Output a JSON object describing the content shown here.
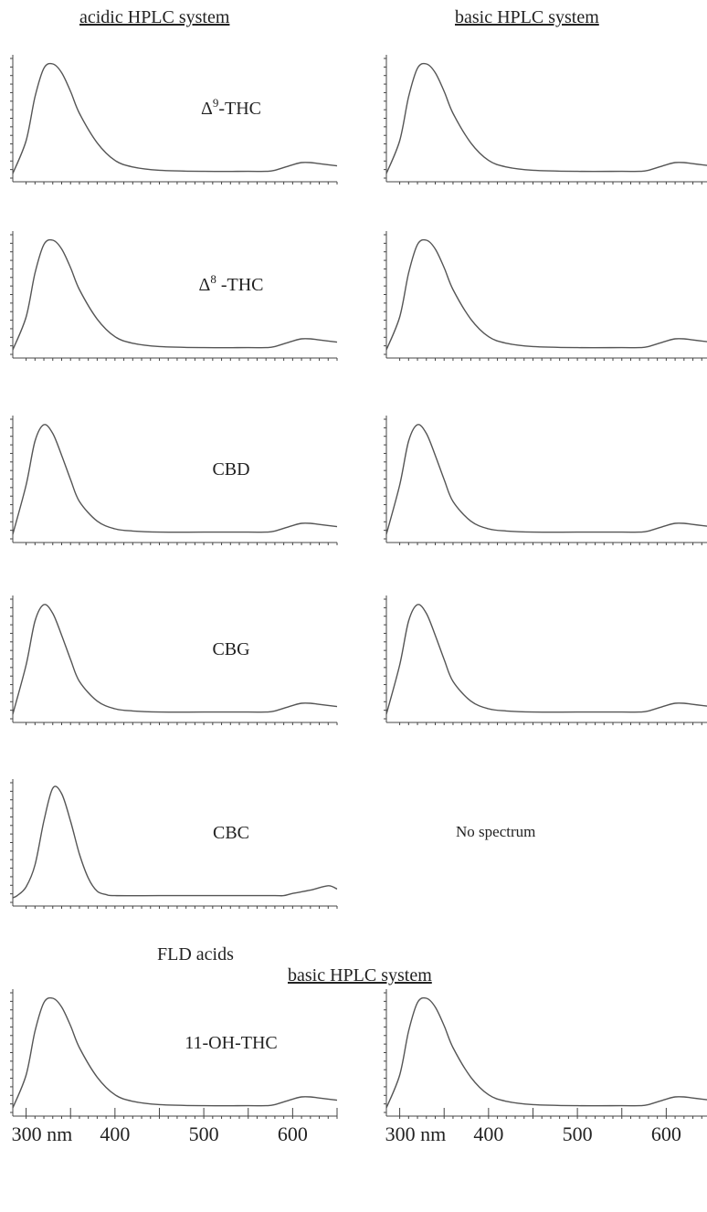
{
  "headers": {
    "acidic": "acidic HPLC system",
    "basic_top": "basic HPLC system",
    "fld_acids": "FLD acids",
    "basic_bottom": "basic HPLC system"
  },
  "no_spectrum": "No spectrum",
  "chart_data": {
    "type": "line",
    "x_unit": "nm",
    "xlim": [
      285,
      650
    ],
    "x_ticks": [
      {
        "value": 300,
        "label": "300 nm"
      },
      {
        "value": 400,
        "label": "400"
      },
      {
        "value": 500,
        "label": "500"
      },
      {
        "value": 600,
        "label": "600"
      }
    ],
    "panels": [
      {
        "row": 0,
        "col": 0,
        "compound_sup": "9",
        "compound": "-THC",
        "compound_prefix": "Δ",
        "x": [
          285,
          300,
          310,
          320,
          330,
          340,
          350,
          360,
          380,
          400,
          420,
          450,
          500,
          550,
          570,
          580,
          600,
          610,
          620,
          630,
          650
        ],
        "y": [
          0,
          30,
          70,
          96,
          100,
          92,
          75,
          55,
          28,
          12,
          6,
          3,
          2,
          2,
          2,
          3,
          8,
          10,
          10,
          9,
          7
        ]
      },
      {
        "row": 0,
        "col": 1,
        "x": [
          285,
          300,
          310,
          320,
          330,
          340,
          350,
          360,
          380,
          400,
          420,
          450,
          500,
          550,
          570,
          580,
          600,
          610,
          620,
          630,
          650
        ],
        "y": [
          0,
          30,
          70,
          96,
          100,
          92,
          75,
          55,
          28,
          12,
          6,
          3,
          2,
          2,
          2,
          3,
          8,
          10,
          10,
          9,
          7
        ]
      },
      {
        "row": 1,
        "col": 0,
        "compound_sup": "8",
        "compound": " -THC",
        "compound_prefix": "Δ",
        "x": [
          285,
          300,
          310,
          320,
          330,
          340,
          350,
          360,
          380,
          400,
          420,
          450,
          500,
          550,
          570,
          580,
          600,
          610,
          620,
          630,
          650
        ],
        "y": [
          0,
          30,
          70,
          96,
          100,
          92,
          75,
          55,
          28,
          12,
          6,
          3,
          2,
          2,
          2,
          3,
          8,
          10,
          10,
          9,
          7
        ]
      },
      {
        "row": 1,
        "col": 1,
        "x": [
          285,
          300,
          310,
          320,
          330,
          340,
          350,
          360,
          380,
          400,
          420,
          450,
          500,
          550,
          570,
          580,
          600,
          610,
          620,
          630,
          650
        ],
        "y": [
          0,
          30,
          70,
          96,
          100,
          92,
          75,
          55,
          28,
          12,
          6,
          3,
          2,
          2,
          2,
          3,
          8,
          10,
          10,
          9,
          7
        ]
      },
      {
        "row": 2,
        "col": 0,
        "compound": "CBD",
        "x": [
          285,
          300,
          310,
          320,
          330,
          340,
          350,
          360,
          380,
          400,
          420,
          450,
          500,
          550,
          570,
          580,
          600,
          610,
          620,
          630,
          650
        ],
        "y": [
          0,
          45,
          85,
          100,
          92,
          72,
          50,
          30,
          12,
          5,
          3,
          2,
          2,
          2,
          2,
          3,
          8,
          10,
          10,
          9,
          7
        ]
      },
      {
        "row": 2,
        "col": 1,
        "x": [
          285,
          300,
          310,
          320,
          330,
          340,
          350,
          360,
          380,
          400,
          420,
          450,
          500,
          550,
          570,
          580,
          600,
          610,
          620,
          630,
          650
        ],
        "y": [
          0,
          45,
          85,
          100,
          92,
          72,
          50,
          30,
          12,
          5,
          3,
          2,
          2,
          2,
          2,
          3,
          8,
          10,
          10,
          9,
          7
        ]
      },
      {
        "row": 3,
        "col": 0,
        "compound": "CBG",
        "x": [
          285,
          300,
          310,
          320,
          330,
          340,
          350,
          360,
          380,
          400,
          420,
          450,
          500,
          550,
          570,
          580,
          600,
          610,
          620,
          630,
          650
        ],
        "y": [
          0,
          45,
          85,
          100,
          92,
          72,
          50,
          30,
          12,
          5,
          3,
          2,
          2,
          2,
          2,
          3,
          8,
          10,
          10,
          9,
          7
        ]
      },
      {
        "row": 3,
        "col": 1,
        "x": [
          285,
          300,
          310,
          320,
          330,
          340,
          350,
          360,
          380,
          400,
          420,
          450,
          500,
          550,
          570,
          580,
          600,
          610,
          620,
          630,
          650
        ],
        "y": [
          0,
          45,
          85,
          100,
          92,
          72,
          50,
          30,
          12,
          5,
          3,
          2,
          2,
          2,
          2,
          3,
          8,
          10,
          10,
          9,
          7
        ]
      },
      {
        "row": 4,
        "col": 0,
        "compound": "CBC",
        "x": [
          285,
          290,
          300,
          310,
          320,
          330,
          340,
          350,
          360,
          370,
          380,
          390,
          400,
          450,
          500,
          550,
          580,
          590,
          600,
          620,
          640,
          650
        ],
        "y": [
          0,
          2,
          10,
          30,
          70,
          100,
          95,
          70,
          40,
          18,
          6,
          3,
          2,
          2,
          2,
          2,
          2,
          2,
          4,
          7,
          11,
          8
        ]
      },
      {
        "row": 6,
        "col": 0,
        "compound": "11-OH-THC",
        "x": [
          285,
          300,
          310,
          320,
          330,
          340,
          350,
          360,
          380,
          400,
          420,
          450,
          500,
          550,
          570,
          580,
          600,
          610,
          620,
          630,
          650
        ],
        "y": [
          0,
          30,
          70,
          96,
          100,
          92,
          75,
          55,
          28,
          12,
          6,
          3,
          2,
          2,
          2,
          3,
          8,
          10,
          10,
          9,
          7
        ]
      },
      {
        "row": 6,
        "col": 1,
        "x": [
          285,
          300,
          310,
          320,
          330,
          340,
          350,
          360,
          380,
          400,
          420,
          450,
          500,
          550,
          570,
          580,
          600,
          610,
          620,
          630,
          650
        ],
        "y": [
          0,
          30,
          70,
          96,
          100,
          92,
          75,
          55,
          28,
          12,
          6,
          3,
          2,
          2,
          2,
          3,
          8,
          10,
          10,
          9,
          7
        ]
      }
    ]
  }
}
